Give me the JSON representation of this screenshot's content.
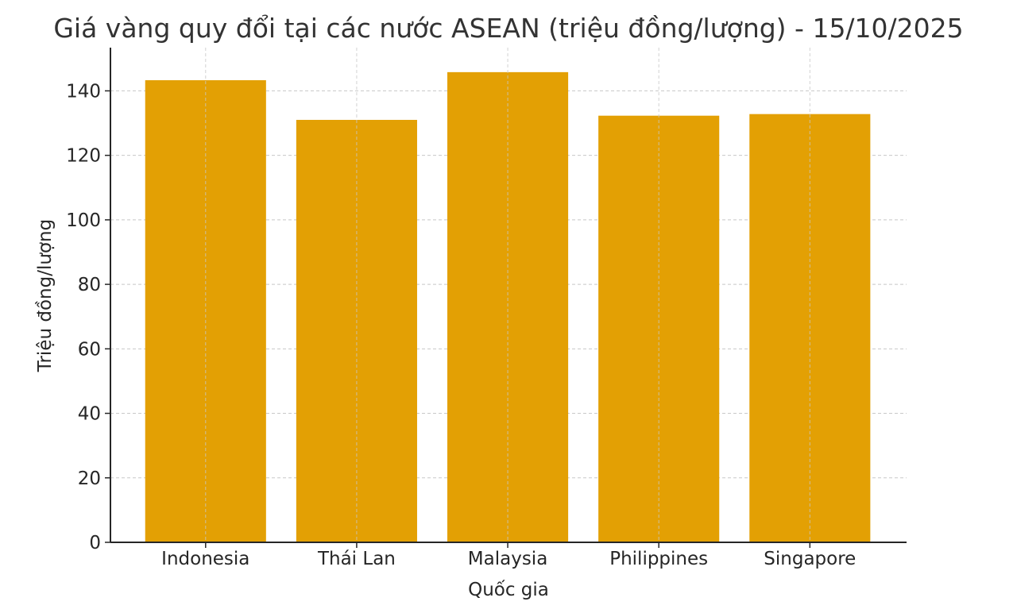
{
  "chart_data": {
    "type": "bar",
    "title": "Giá vàng quy đổi tại các nước ASEAN (triệu đồng/lượng) - 15/10/2025",
    "xlabel": "Quốc gia",
    "ylabel": "Triệu đồng/lượng",
    "categories": [
      "Indonesia",
      "Thái Lan",
      "Malaysia",
      "Philippines",
      "Singapore"
    ],
    "values": [
      143.3,
      131.0,
      145.8,
      132.3,
      132.8
    ],
    "ylim": [
      0,
      153.4
    ],
    "yticks": [
      0,
      20,
      40,
      60,
      80,
      100,
      120,
      140
    ],
    "grid": true,
    "bar_color": "#E3A004"
  }
}
